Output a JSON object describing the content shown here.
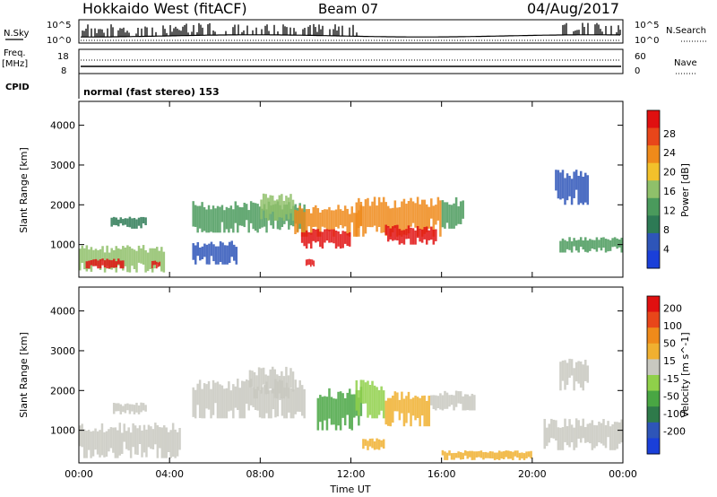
{
  "header": {
    "station": "Hokkaido West (fitACF)",
    "beam": "Beam 07",
    "date": "04/Aug/2017"
  },
  "side_labels": {
    "nsky": "N.Sky",
    "nsearch": "N.Search",
    "freq_line1": "Freq.",
    "freq_line2": "[MHz]",
    "nave": "Nave",
    "cpid": "CPID"
  },
  "noise_panel": {
    "left_ticks": [
      "10^5",
      "10^0"
    ],
    "right_ticks": [
      "10^5",
      "10^0"
    ]
  },
  "freq_panel": {
    "left_ticks": [
      "18",
      "8"
    ],
    "right_ticks": [
      "60",
      "0"
    ]
  },
  "cpid_text": "normal (fast stereo) 153",
  "colors": {
    "power_scale": [
      "#1a3fd9",
      "#2e55b8",
      "#2d7a55",
      "#4a9a5c",
      "#8fc06a",
      "#f2c12b",
      "#ef8a1a",
      "#e8461a",
      "#e01010"
    ],
    "velocity_scale": [
      "#1a3fd9",
      "#2e55b8",
      "#2e7a4a",
      "#49a643",
      "#8fd04a",
      "#c8c8c0",
      "#f0b030",
      "#ef8a1a",
      "#e8461a",
      "#e01010"
    ]
  },
  "chart_data": [
    {
      "type": "heatmap",
      "panel": "power",
      "title": "",
      "ylabel": "Slant Range [km]",
      "y_ticks": [
        "1000",
        "2000",
        "3000",
        "4000"
      ],
      "x_ticks": [
        "00:00",
        "04:00",
        "08:00",
        "12:00",
        "16:00",
        "20:00",
        "00:00"
      ],
      "xlim_hours": [
        0,
        24
      ],
      "ylim_km": [
        180,
        4600
      ],
      "colorbar_label": "Power [dB]",
      "colorbar_ticks": [
        "4",
        "8",
        "12",
        "16",
        "20",
        "24",
        "28"
      ],
      "regions": [
        {
          "t0": 0.0,
          "t1": 3.8,
          "r0": 300,
          "r1": 1000,
          "level": 4
        },
        {
          "t0": 0.3,
          "t1": 2.0,
          "r0": 400,
          "r1": 650,
          "level": 8
        },
        {
          "t0": 3.2,
          "t1": 3.6,
          "r0": 400,
          "r1": 600,
          "level": 8
        },
        {
          "t0": 1.4,
          "t1": 3.0,
          "r0": 1400,
          "r1": 1700,
          "level": 2
        },
        {
          "t0": 5.0,
          "t1": 10.0,
          "r0": 1300,
          "r1": 2100,
          "level": 3
        },
        {
          "t0": 8.0,
          "t1": 9.5,
          "r0": 1600,
          "r1": 2300,
          "level": 4
        },
        {
          "t0": 9.5,
          "t1": 12.5,
          "r0": 1200,
          "r1": 2000,
          "level": 6
        },
        {
          "t0": 9.8,
          "t1": 12.0,
          "r0": 900,
          "r1": 1400,
          "level": 8
        },
        {
          "t0": 12.2,
          "t1": 16.0,
          "r0": 1200,
          "r1": 2200,
          "level": 6
        },
        {
          "t0": 13.5,
          "t1": 15.8,
          "r0": 1000,
          "r1": 1500,
          "level": 8
        },
        {
          "t0": 16.0,
          "t1": 17.0,
          "r0": 1400,
          "r1": 2200,
          "level": 3
        },
        {
          "t0": 10.0,
          "t1": 10.4,
          "r0": 400,
          "r1": 650,
          "level": 8
        },
        {
          "t0": 21.0,
          "t1": 22.5,
          "r0": 2000,
          "r1": 2900,
          "level": 1
        },
        {
          "t0": 21.2,
          "t1": 24.0,
          "r0": 800,
          "r1": 1200,
          "level": 3
        },
        {
          "t0": 5.0,
          "t1": 7.0,
          "r0": 500,
          "r1": 1100,
          "level": 1
        }
      ]
    },
    {
      "type": "heatmap",
      "panel": "velocity",
      "title": "",
      "ylabel": "Slant Range [km]",
      "y_ticks": [
        "1000",
        "2000",
        "3000",
        "4000"
      ],
      "x_ticks": [
        "00:00",
        "04:00",
        "08:00",
        "12:00",
        "16:00",
        "20:00",
        "00:00"
      ],
      "xlabel": "Time UT",
      "xlim_hours": [
        0,
        24
      ],
      "ylim_km": [
        180,
        4600
      ],
      "colorbar_label": "Velocity [m s^-1]",
      "colorbar_ticks": [
        "200",
        "100",
        "50",
        "15",
        "-15",
        "-50",
        "-100",
        "-200"
      ],
      "regions": [
        {
          "t0": 0.0,
          "t1": 4.5,
          "r0": 300,
          "r1": 1200,
          "level": 5
        },
        {
          "t0": 1.5,
          "t1": 3.0,
          "r0": 1400,
          "r1": 1700,
          "level": 5
        },
        {
          "t0": 5.0,
          "t1": 10.0,
          "r0": 1300,
          "r1": 2300,
          "level": 5
        },
        {
          "t0": 7.5,
          "t1": 9.5,
          "r0": 1800,
          "r1": 2600,
          "level": 5
        },
        {
          "t0": 10.5,
          "t1": 12.5,
          "r0": 1000,
          "r1": 2100,
          "level": 3
        },
        {
          "t0": 12.2,
          "t1": 13.5,
          "r0": 1300,
          "r1": 2300,
          "level": 4
        },
        {
          "t0": 13.5,
          "t1": 15.5,
          "r0": 1100,
          "r1": 2000,
          "level": 6
        },
        {
          "t0": 15.5,
          "t1": 17.5,
          "r0": 1500,
          "r1": 2000,
          "level": 5
        },
        {
          "t0": 12.5,
          "t1": 13.5,
          "r0": 500,
          "r1": 800,
          "level": 6
        },
        {
          "t0": 21.2,
          "t1": 22.5,
          "r0": 2000,
          "r1": 2800,
          "level": 5
        },
        {
          "t0": 20.5,
          "t1": 24.0,
          "r0": 500,
          "r1": 1300,
          "level": 5
        },
        {
          "t0": 16.0,
          "t1": 20.0,
          "r0": 250,
          "r1": 500,
          "level": 6
        }
      ]
    }
  ]
}
